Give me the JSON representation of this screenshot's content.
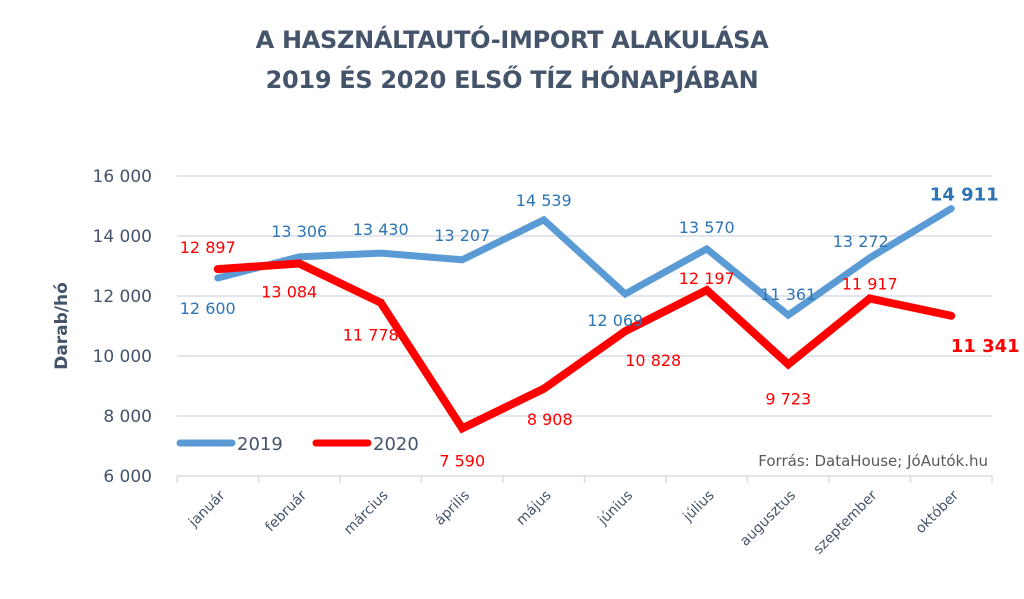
{
  "chart_data": {
    "type": "line",
    "title": "A HASZNÁLTAUTÓ-IMPORT ALAKULÁSA",
    "subtitle": "2019 ÉS 2020 ELSŐ TÍZ HÓNAPJÁBAN",
    "ylabel": "Darab/hó",
    "xlabel": "",
    "ylim": [
      6000,
      16000
    ],
    "yticks": [
      16000,
      14000,
      12000,
      10000,
      8000,
      6000
    ],
    "ytick_labels": [
      "16 000",
      "14 000",
      "12 000",
      "10 000",
      "8 000",
      "6 000"
    ],
    "grid": true,
    "legend_position": "bottom-left",
    "categories": [
      "január",
      "február",
      "március",
      "április",
      "május",
      "június",
      "július",
      "augusztus",
      "szeptember",
      "október"
    ],
    "series": [
      {
        "name": "2019",
        "color": "#5B9BD5",
        "label_color": "#2E75B6",
        "values": [
          12600,
          13306,
          13430,
          13207,
          14539,
          12069,
          13570,
          11361,
          13272,
          14911
        ],
        "labels": [
          "12 600",
          "13 306",
          "13 430",
          "13 207",
          "14 539",
          "12 069",
          "13 570",
          "11 361",
          "13 272",
          "14 911"
        ]
      },
      {
        "name": "2020",
        "color": "#FF0000",
        "label_color": "#FF0000",
        "values": [
          12897,
          13084,
          11778,
          7590,
          8908,
          10828,
          12197,
          9723,
          11917,
          11341
        ],
        "labels": [
          "12 897",
          "13 084",
          "11 778",
          "7 590",
          "8 908",
          "10 828",
          "12 197",
          "9 723",
          "11 917",
          "11 341"
        ]
      }
    ],
    "annotations": [
      "Forrás: DataHouse; JóAutók.hu"
    ]
  }
}
